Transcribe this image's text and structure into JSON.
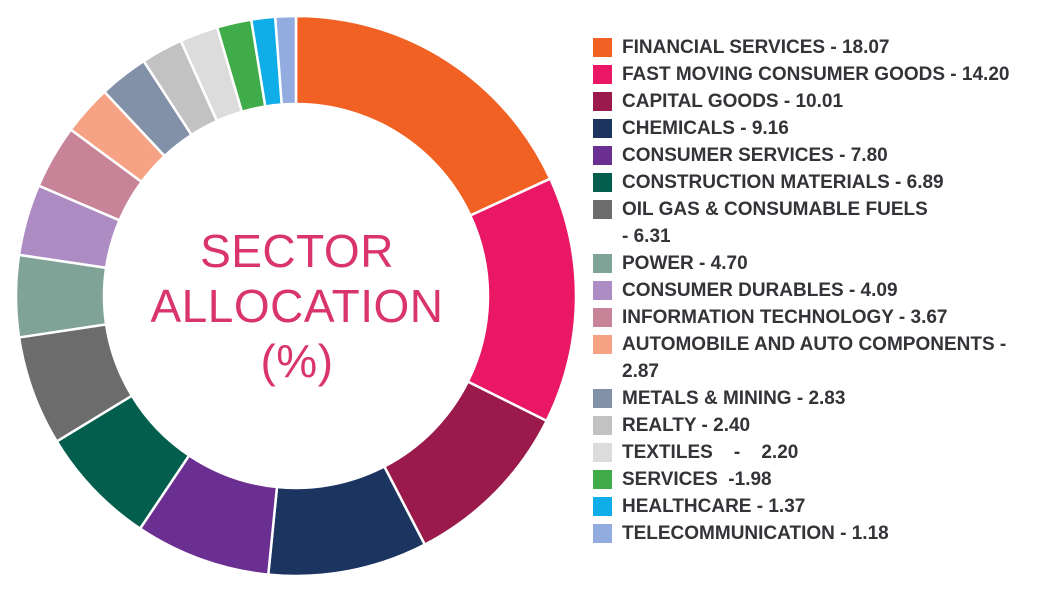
{
  "center_title": {
    "line1": "SECTOR",
    "line2": "ALLOCATION",
    "line3": "(%)"
  },
  "chart_data": {
    "type": "pie",
    "donut": true,
    "legend_position": "right",
    "slices": [
      {
        "label": "FINANCIAL SERVICES - 18.07",
        "name": "FINANCIAL SERVICES",
        "value": 18.07,
        "color": "#f26124"
      },
      {
        "label": "FAST MOVING CONSUMER GOODS - 14.20",
        "name": "FAST MOVING CONSUMER GOODS",
        "value": 14.2,
        "color": "#ea1764"
      },
      {
        "label": "CAPITAL GOODS - 10.01",
        "name": "CAPITAL GOODS",
        "value": 10.01,
        "color": "#9b1a4c"
      },
      {
        "label": "CHEMICALS - 9.16",
        "name": "CHEMICALS",
        "value": 9.16,
        "color": "#1c3560"
      },
      {
        "label": "CONSUMER SERVICES - 7.80",
        "name": "CONSUMER SERVICES",
        "value": 7.8,
        "color": "#6b2f91"
      },
      {
        "label": "CONSTRUCTION MATERIALS - 6.89",
        "name": "CONSTRUCTION MATERIALS",
        "value": 6.89,
        "color": "#045e4e"
      },
      {
        "label": "OIL GAS & CONSUMABLE FUELS\n- 6.31",
        "name": "OIL GAS & CONSUMABLE FUELS",
        "value": 6.31,
        "color": "#6c6c6c"
      },
      {
        "label": "POWER - 4.70",
        "name": "POWER",
        "value": 4.7,
        "color": "#7fa497"
      },
      {
        "label": "CONSUMER DURABLES - 4.09",
        "name": "CONSUMER DURABLES",
        "value": 4.09,
        "color": "#ad8cc4"
      },
      {
        "label": "INFORMATION TECHNOLOGY - 3.67",
        "name": "INFORMATION TECHNOLOGY",
        "value": 3.67,
        "color": "#c78397"
      },
      {
        "label": "AUTOMOBILE AND AUTO COMPONENTS -\n2.87",
        "name": "AUTOMOBILE AND AUTO COMPONENTS",
        "value": 2.87,
        "color": "#f5a285"
      },
      {
        "label": "METALS & MINING - 2.83",
        "name": "METALS & MINING",
        "value": 2.83,
        "color": "#8291a8"
      },
      {
        "label": "REALTY - 2.40",
        "name": "REALTY",
        "value": 2.4,
        "color": "#c2c2c2"
      },
      {
        "label": "TEXTILES    -    2.20",
        "name": "TEXTILES",
        "value": 2.2,
        "color": "#dcdcdc"
      },
      {
        "label": "SERVICES  -1.98",
        "name": "SERVICES",
        "value": 1.98,
        "color": "#3fab49"
      },
      {
        "label": "HEALTHCARE - 1.37",
        "name": "HEALTHCARE",
        "value": 1.37,
        "color": "#10aee8"
      },
      {
        "label": "TELECOMMUNICATION - 1.18",
        "name": "TELECOMMUNICATION",
        "value": 1.18,
        "color": "#93ace0"
      }
    ]
  }
}
